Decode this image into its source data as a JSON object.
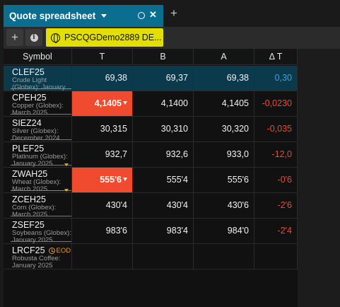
{
  "tab": {
    "title": "Quote spreadsheet"
  },
  "toolbar": {
    "account": "PSCQGDemo2889 DE..."
  },
  "columns": [
    "Symbol",
    "T",
    "B",
    "A",
    "Δ T"
  ],
  "rows": [
    {
      "symbol": "CLEF25",
      "desc1": "Crude Light",
      "desc2": "(Globex): January...",
      "t": "69,38",
      "b": "69,37",
      "a": "69,38",
      "dt": "0,30",
      "dt_color": "#3aa0e0",
      "selected": true,
      "t_highlight": false,
      "marker": "#3aa0e0",
      "bid_tri": false
    },
    {
      "symbol": "CPEH25",
      "desc1": "Copper (Globex):",
      "desc2": "March 2025",
      "t": "4,1405",
      "b": "4,1400",
      "a": "4,1405",
      "dt": "-0,0230",
      "dt_color": "#f04a2f",
      "selected": false,
      "t_highlight": true,
      "marker": "#f04a2f",
      "bid_tri": false
    },
    {
      "symbol": "SIEZ24",
      "desc1": "Silver (Globex):",
      "desc2": "December 2024",
      "t": "30,315",
      "b": "30,310",
      "a": "30,320",
      "dt": "-0,035",
      "dt_color": "#f04a2f",
      "selected": false,
      "t_highlight": false,
      "marker": "#f04a2f",
      "bid_tri": false
    },
    {
      "symbol": "PLEF25",
      "desc1": "Platinum (Globex):",
      "desc2": "January 2025",
      "t": "932,7",
      "b": "932,6",
      "a": "933,0",
      "dt": "-12,0",
      "dt_color": "#f04a2f",
      "selected": false,
      "t_highlight": false,
      "marker": "#f04a2f",
      "bid_tri": true
    },
    {
      "symbol": "ZWAH25",
      "desc1": "Wheat (Globex):",
      "desc2": "March 2025",
      "t": "555'6",
      "b": "555'4",
      "a": "555'6",
      "dt": "-0'6",
      "dt_color": "#f04a2f",
      "selected": false,
      "t_highlight": true,
      "marker": "#3aa0e0",
      "bid_tri": true
    },
    {
      "symbol": "ZCEH25",
      "desc1": "Corn (Globex):",
      "desc2": "March 2025",
      "t": "430'4",
      "b": "430'4",
      "a": "430'6",
      "dt": "-2'6",
      "dt_color": "#f04a2f",
      "selected": false,
      "t_highlight": false,
      "marker": "#f04a2f",
      "bid_tri": false
    },
    {
      "symbol": "ZSEF25",
      "desc1": "Soybeans (Globex):",
      "desc2": "January 2025",
      "t": "983'6",
      "b": "983'4",
      "a": "984'0",
      "dt": "-2'4",
      "dt_color": "#f04a2f",
      "selected": false,
      "t_highlight": false,
      "marker": "#f04a2f",
      "bid_tri": false
    },
    {
      "symbol": "LRCF25",
      "desc1": "Robusta Coffee:",
      "desc2": "January 2025",
      "t": "",
      "b": "",
      "a": "",
      "dt": "",
      "dt_color": "#f04a2f",
      "selected": false,
      "t_highlight": false,
      "marker": "",
      "bid_tri": false,
      "eod": "EOD"
    }
  ]
}
